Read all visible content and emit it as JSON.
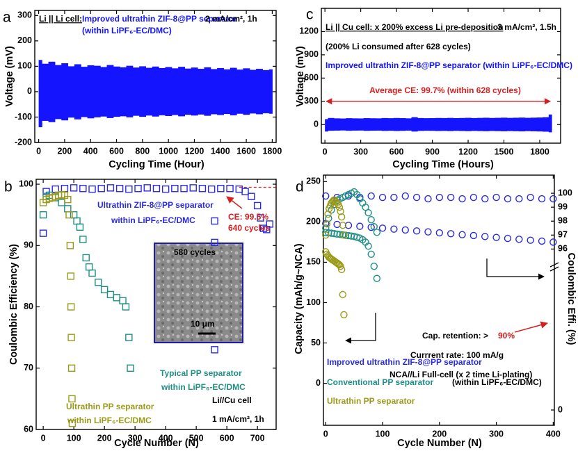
{
  "chart_data": [
    {
      "type": "band",
      "label": "a",
      "x_label": "Cycling Time (Hour)",
      "y_label": "Voltage (mV)",
      "color": "#1414ff",
      "x": [
        0,
        50,
        100,
        150,
        200,
        250,
        300,
        350,
        400,
        450,
        500,
        550,
        600,
        650,
        700,
        750,
        800,
        850,
        900,
        950,
        1000,
        1050,
        1100,
        1150,
        1200,
        1250,
        1300,
        1350,
        1400,
        1450,
        1500,
        1550,
        1600,
        1650,
        1700,
        1750,
        1800
      ],
      "upper": [
        125,
        110,
        118,
        105,
        112,
        100,
        108,
        98,
        104,
        102,
        97,
        105,
        99,
        96,
        102,
        95,
        100,
        94,
        99,
        93,
        97,
        92,
        98,
        91,
        95,
        90,
        96,
        89,
        93,
        88,
        94,
        87,
        92,
        86,
        90,
        85,
        88
      ],
      "lower": [
        -140,
        -115,
        -120,
        -108,
        -113,
        -102,
        -109,
        -100,
        -105,
        -101,
        -98,
        -104,
        -99,
        -97,
        -101,
        -95,
        -99,
        -94,
        -98,
        -93,
        -96,
        -92,
        -97,
        -91,
        -94,
        -90,
        -95,
        -89,
        -92,
        -88,
        -93,
        -87,
        -91,
        -86,
        -89,
        -85,
        -87
      ],
      "xlim": [
        -30,
        1830
      ],
      "ylim": [
        -200,
        320
      ],
      "xticks": [
        0,
        200,
        400,
        600,
        800,
        1000,
        1200,
        1400,
        1600,
        1800
      ],
      "yticks": [
        -200,
        -100,
        0,
        100,
        200,
        300
      ],
      "annotations": [
        {
          "text": "Li || Li cell:",
          "color": "#000000"
        },
        {
          "text": "Improved ultrathin ZIF-8@PP separator",
          "color": "#1414ff"
        },
        {
          "text": "(within LiPF₆-EC/DMC)",
          "color": "#1414ff"
        },
        {
          "text": "2 mA/cm², 1h",
          "color": "#000000"
        }
      ]
    },
    {
      "type": "scatter",
      "label": "b",
      "x_label": "Cycle Number (N)",
      "y_label": "Coulombic Efficiency (%)",
      "marker": "square",
      "xlim": [
        -23,
        761
      ],
      "ylim": [
        60,
        100.8
      ],
      "xticks": [
        0,
        100,
        200,
        300,
        400,
        500,
        600,
        700
      ],
      "yticks": [
        60,
        70,
        80,
        90,
        100
      ],
      "hline": {
        "value": 99.5,
        "color": "#d42020"
      },
      "series": [
        {
          "name": "Ultrathin ZIF-8@PP separator",
          "color": "#2a2ae0",
          "x": [
            0,
            10,
            40,
            70,
            100,
            130,
            160,
            190,
            220,
            250,
            280,
            310,
            340,
            370,
            400,
            430,
            460,
            490,
            520,
            550,
            580,
            610,
            640,
            660,
            680,
            700,
            710,
            720,
            730,
            740,
            560,
            560,
            560
          ],
          "values": [
            92,
            98.8,
            99.2,
            99.3,
            99.4,
            99.3,
            99.2,
            99.3,
            99.4,
            99.3,
            99.2,
            99.3,
            99.4,
            99.3,
            99.2,
            99.3,
            99.3,
            99.4,
            99.3,
            99.2,
            99.3,
            99.3,
            99.2,
            98.8,
            98,
            96.5,
            94.5,
            92.8,
            92.6,
            93.5,
            94,
            90.5,
            73
          ]
        },
        {
          "name": "Typical PP separator",
          "color": "#1f8f85",
          "x": [
            0,
            10,
            20,
            40,
            60,
            80,
            100,
            110,
            120,
            130,
            140,
            150,
            160,
            180,
            200,
            220,
            240,
            260,
            270,
            280,
            285
          ],
          "values": [
            95,
            98,
            98.2,
            97.8,
            97,
            96,
            95,
            94,
            93,
            91,
            88,
            86.5,
            85.5,
            84,
            82.8,
            82,
            81.5,
            81,
            80,
            75,
            70
          ]
        },
        {
          "name": "Ultrathin PP separator",
          "color": "#9a9a18",
          "x": [
            0,
            10,
            20,
            30,
            40,
            50,
            60,
            70,
            80,
            85,
            88,
            90,
            91,
            92,
            93,
            94,
            95
          ],
          "values": [
            97,
            97.5,
            97.7,
            97.8,
            98,
            98.2,
            98.3,
            98.2,
            97.5,
            95,
            90,
            85,
            80,
            75,
            70,
            65,
            61
          ]
        }
      ],
      "annotations": [
        {
          "text": "within LiPF₆-EC/DMC",
          "color": "#2a2ae0"
        },
        {
          "text": "CE: 99.5%",
          "color": "#d42020"
        },
        {
          "text": "640 cycles",
          "color": "#d42020"
        },
        {
          "text": "within LiPF₆-EC/DMC",
          "color": "#1f8f85"
        },
        {
          "text": "within LiPF₆-EC/DMC",
          "color": "#9a9a18"
        },
        {
          "text": "Li//Cu cell",
          "color": "#000000"
        },
        {
          "text": "1 mA/cm², 1h",
          "color": "#000000"
        },
        {
          "text": "580 cycles",
          "color": "#000000"
        },
        {
          "text": "10 μm",
          "color": "#000000"
        }
      ]
    },
    {
      "type": "band",
      "label": "c",
      "x_label": "Cycling Time (Hours)",
      "y_label": "Voltage (mV)",
      "color": "#1414ff",
      "x": [
        0,
        50,
        100,
        150,
        200,
        250,
        300,
        350,
        400,
        450,
        500,
        550,
        600,
        650,
        700,
        750,
        800,
        850,
        900,
        950,
        1000,
        1050,
        1100,
        1150,
        1200,
        1250,
        1300,
        1350,
        1400,
        1450,
        1500,
        1550,
        1600,
        1650,
        1700,
        1750,
        1800,
        1850,
        1900
      ],
      "upper": [
        70,
        85,
        80,
        78,
        82,
        80,
        79,
        83,
        81,
        80,
        84,
        82,
        85,
        83,
        80,
        95,
        84,
        82,
        83,
        85,
        84,
        86,
        83,
        85,
        87,
        84,
        86,
        88,
        85,
        87,
        89,
        86,
        88,
        90,
        87,
        89,
        91,
        95,
        130
      ],
      "lower": [
        -90,
        -80,
        -78,
        -76,
        -80,
        -78,
        -77,
        -81,
        -79,
        -78,
        -82,
        -80,
        -83,
        -81,
        -78,
        -90,
        -82,
        -80,
        -81,
        -83,
        -82,
        -84,
        -81,
        -83,
        -85,
        -82,
        -84,
        -86,
        -83,
        -85,
        -87,
        -84,
        -86,
        -88,
        -85,
        -87,
        -89,
        -92,
        -100
      ],
      "xlim": [
        -30,
        1975
      ],
      "ylim": [
        -240,
        1500
      ],
      "xticks": [
        0,
        300,
        600,
        900,
        1200,
        1500,
        1800
      ],
      "yticks": [
        0,
        300,
        600,
        900,
        1200
      ],
      "hline": {
        "value": 300,
        "color": "#d42020"
      },
      "annotations": [
        {
          "text": "Li || Cu cell: x 200% excess Li pre-deposition",
          "color": "#000000"
        },
        {
          "text": "3 mA/cm², 1.5h",
          "color": "#000000"
        },
        {
          "text": "(200% Li consumed after 628 cycles)",
          "color": "#000000"
        },
        {
          "text": "Improved ultrathin ZIF-8@PP separator (within LiPF₆-EC/DMC)",
          "color": "#1414ff"
        },
        {
          "text": "Average CE: 99.7% (within 628 cycles)",
          "color": "#d42020"
        }
      ]
    },
    {
      "type": "scatter",
      "label": "d",
      "x_label": "Cycle Number (N)",
      "y_label": "Capacity (mAh/g~NCA)",
      "y2_label": "Coulombic Effi. (%)",
      "marker": "circle",
      "xlim": [
        -4,
        402
      ],
      "ylim": [
        -52,
        258
      ],
      "y2lim": [
        0,
        101.3
      ],
      "y2break": [
        0.5,
        95.2
      ],
      "xticks": [
        0,
        100,
        200,
        300,
        400
      ],
      "yticks": [
        0,
        50,
        100,
        150,
        200,
        250
      ],
      "y2ticks": [
        0,
        96,
        97,
        98,
        99,
        100
      ],
      "series": [
        {
          "name": "Improved ultrathin ZIF-8@PP separator",
          "color": "#2a2ae0",
          "x": [
            0,
            20,
            40,
            60,
            80,
            100,
            120,
            140,
            160,
            180,
            200,
            220,
            240,
            260,
            280,
            300,
            320,
            340,
            360,
            380,
            400
          ],
          "values": [
            198,
            196.9,
            195.7,
            194.6,
            193.4,
            192.3,
            191.1,
            190,
            188.8,
            187.7,
            186.5,
            185.4,
            184.2,
            183.1,
            181.9,
            180.8,
            179.6,
            178.5,
            177.3,
            176.2,
            175
          ]
        },
        {
          "name": "Conventional PP separator",
          "color": "#1f8f85",
          "x": [
            0,
            5,
            10,
            15,
            20,
            25,
            30,
            35,
            40,
            45,
            50,
            55,
            60,
            65,
            70,
            75,
            80,
            85,
            90
          ],
          "values": [
            187,
            186.5,
            186,
            185.5,
            185,
            184.5,
            184,
            183.5,
            183,
            182.5,
            182,
            181,
            180,
            178,
            175,
            170,
            160,
            145,
            130
          ]
        },
        {
          "name": "Ultrathin PP separator",
          "color": "#9a9a18",
          "x": [
            0,
            2,
            4,
            6,
            8,
            10,
            12,
            14,
            16,
            18,
            20,
            22,
            24,
            26,
            28,
            30,
            32
          ],
          "values": [
            163,
            160,
            158,
            156,
            155,
            154,
            153,
            152,
            151,
            150,
            149,
            148,
            147,
            145,
            141,
            110,
            85
          ]
        },
        {
          "color": "#2a2ae0",
          "axis": "y2",
          "x": [
            0,
            20,
            40,
            60,
            80,
            100,
            120,
            140,
            160,
            180,
            200,
            220,
            240,
            260,
            280,
            300,
            320,
            340,
            360,
            380,
            400
          ],
          "values": [
            99.8,
            99.7,
            99.8,
            99.7,
            99.8,
            99.7,
            99.7,
            99.8,
            99.7,
            99.6,
            99.7,
            99.7,
            99.6,
            99.7,
            99.6,
            99.7,
            99.6,
            99.6,
            99.7,
            99.6,
            99.6
          ]
        },
        {
          "color": "#1f8f85",
          "axis": "y2",
          "x": [
            0,
            5,
            10,
            15,
            20,
            25,
            30,
            35,
            40,
            45,
            50,
            55,
            60,
            65,
            70,
            75,
            80,
            85,
            90
          ],
          "values": [
            97.5,
            98.2,
            98.8,
            99.2,
            99.5,
            99.6,
            99.7,
            99.8,
            99.9,
            100,
            100.1,
            99.9,
            99.6,
            99.3,
            99,
            98.6,
            98.1,
            97.6,
            97.2
          ]
        },
        {
          "color": "#9a9a18",
          "axis": "y2",
          "x": [
            0,
            2,
            4,
            6,
            8,
            10,
            12,
            14,
            16,
            18,
            20,
            22,
            24,
            26,
            28,
            30,
            32
          ],
          "values": [
            97,
            97.8,
            98.5,
            98.9,
            99.1,
            99.3,
            99.4,
            99.5,
            99.5,
            99.4,
            99.3,
            99.2,
            99,
            98.7,
            98.3,
            97.7,
            97
          ]
        }
      ],
      "annotations": [
        {
          "text": "Cap. retention: >",
          "color": "#000000"
        },
        {
          "text": "90%",
          "color": "#d42020"
        },
        {
          "text": "Currrent rate: 100 mA/g",
          "color": "#000000"
        },
        {
          "text": "NCA//Li Full-cell (x 2 time Li-plating)",
          "color": "#000000"
        },
        {
          "text": "(within LiPF₆-EC/DMC)",
          "color": "#000000"
        }
      ]
    }
  ]
}
